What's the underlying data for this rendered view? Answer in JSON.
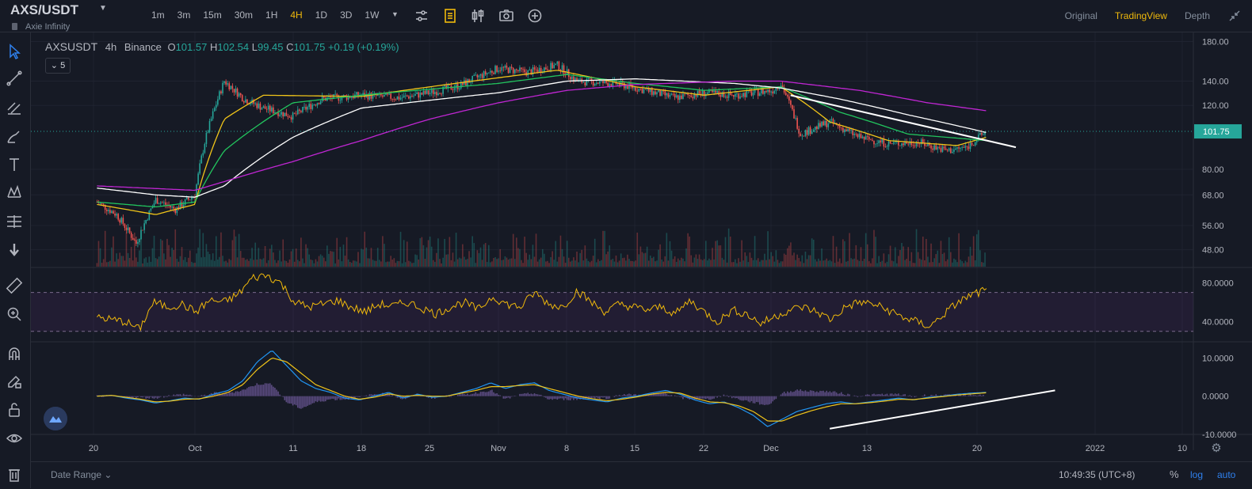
{
  "header": {
    "symbol": "AXS/USDT",
    "name": "Axie Infinity",
    "intervals": [
      "1m",
      "3m",
      "15m",
      "30m",
      "1H",
      "4H",
      "1D",
      "3D",
      "1W"
    ],
    "active_interval": "4H",
    "views": [
      "Original",
      "TradingView",
      "Depth"
    ],
    "active_view": "TradingView"
  },
  "legend": {
    "symbol": "AXSUSDT",
    "interval": "4h",
    "exchange": "Binance",
    "o_label": "O",
    "open": "101.57",
    "h_label": "H",
    "high": "102.54",
    "l_label": "L",
    "low": "99.45",
    "c_label": "C",
    "close": "101.75",
    "change": "+0.19 (+0.19%)",
    "indicator_count": "5"
  },
  "bottom": {
    "date_range": "Date Range",
    "clock": "10:49:35 (UTC+8)",
    "pct": "%",
    "log": "log",
    "auto": "auto"
  },
  "colors": {
    "up": "#26a69a",
    "down": "#ef5350",
    "ma_yellow": "#f0c419",
    "ma_green": "#22c55e",
    "ma_white": "#ffffff",
    "ma_purple": "#c026d3",
    "rsi": "#f0b90b",
    "macd": "#2196f3",
    "signal": "#f0c419",
    "accent": "#f0b90b"
  },
  "chart_data": [
    {
      "type": "candlestick",
      "scale": "log",
      "ylim": [
        44,
        185
      ],
      "y_ticks": [
        "180.00",
        "140.00",
        "120.00",
        "80.00",
        "68.00",
        "56.00",
        "48.00"
      ],
      "last_price": "101.75",
      "x_ticks": [
        "20",
        "Oct",
        "11",
        "18",
        "25",
        "Nov",
        "8",
        "15",
        "22",
        "Dec",
        "13",
        "20",
        "2022",
        "10"
      ],
      "price_path": [
        [
          "20",
          65
        ],
        [
          "22",
          60
        ],
        [
          "24",
          50
        ],
        [
          "26",
          66
        ],
        [
          "28",
          62
        ],
        [
          "Sep 30",
          68
        ],
        [
          "Oct 2",
          95
        ],
        [
          "Oct 4",
          140
        ],
        [
          "Oct 6",
          125
        ],
        [
          "Oct 8",
          118
        ],
        [
          "Oct 11",
          112
        ],
        [
          "Oct 14",
          125
        ],
        [
          "Oct 18",
          128
        ],
        [
          "Oct 22",
          126
        ],
        [
          "Oct 25",
          130
        ],
        [
          "Oct 28",
          136
        ],
        [
          "Nov 1",
          152
        ],
        [
          "Nov 4",
          148
        ],
        [
          "Nov 7",
          155
        ],
        [
          "Nov 9",
          140
        ],
        [
          "Nov 13",
          138
        ],
        [
          "Nov 16",
          132
        ],
        [
          "Nov 19",
          126
        ],
        [
          "Nov 22",
          130
        ],
        [
          "Nov 25",
          128
        ],
        [
          "Nov 29",
          132
        ],
        [
          "Dec 2",
          138
        ],
        [
          "Dec 4",
          100
        ],
        [
          "Dec 7",
          108
        ],
        [
          "Dec 10",
          98
        ],
        [
          "Dec 13",
          94
        ],
        [
          "Dec 16",
          95
        ],
        [
          "Dec 19",
          90
        ],
        [
          "Dec 21",
          92
        ],
        [
          "Dec 23",
          101.75
        ]
      ],
      "moving_averages": [
        {
          "color": "#f0c419",
          "path": [
            [
              "20",
              64
            ],
            [
              "26",
              60
            ],
            [
              "Sep 30",
              64
            ],
            [
              "Oct 4",
              110
            ],
            [
              "Oct 8",
              128
            ],
            [
              "Oct 18",
              127
            ],
            [
              "Nov 1",
              143
            ],
            [
              "Nov 7",
              150
            ],
            [
              "Nov 15",
              135
            ],
            [
              "Nov 22",
              128
            ],
            [
              "Dec 2",
              135
            ],
            [
              "Dec 7",
              108
            ],
            [
              "Dec 13",
              96
            ],
            [
              "Dec 20",
              93
            ],
            [
              "Dec 23",
              98
            ]
          ]
        },
        {
          "color": "#22c55e",
          "path": [
            [
              "20",
              65
            ],
            [
              "26",
              63
            ],
            [
              "Sep 30",
              65
            ],
            [
              "Oct 4",
              90
            ],
            [
              "Oct 11",
              122
            ],
            [
              "Oct 18",
              128
            ],
            [
              "Nov 1",
              138
            ],
            [
              "Nov 8",
              146
            ],
            [
              "Nov 15",
              138
            ],
            [
              "Nov 22",
              132
            ],
            [
              "Dec 2",
              135
            ],
            [
              "Dec 8",
              115
            ],
            [
              "Dec 15",
              100
            ],
            [
              "Dec 23",
              96
            ]
          ]
        },
        {
          "color": "#ffffff",
          "path": [
            [
              "20",
              71
            ],
            [
              "26",
              68
            ],
            [
              "Sep 30",
              67
            ],
            [
              "Oct 4",
              72
            ],
            [
              "Oct 11",
              98
            ],
            [
              "Oct 18",
              118
            ],
            [
              "Nov 1",
              130
            ],
            [
              "Nov 8",
              140
            ],
            [
              "Nov 15",
              142
            ],
            [
              "Nov 25",
              138
            ],
            [
              "Dec 2",
              134
            ],
            [
              "Dec 8",
              125
            ],
            [
              "Dec 15",
              113
            ],
            [
              "Dec 23",
              101
            ]
          ]
        },
        {
          "color": "#c026d3",
          "path": [
            [
              "20",
              72
            ],
            [
              "Sep 30",
              70
            ],
            [
              "Oct 4",
              74
            ],
            [
              "Oct 11",
              84
            ],
            [
              "Oct 18",
              96
            ],
            [
              "Oct 25",
              110
            ],
            [
              "Nov 1",
              122
            ],
            [
              "Nov 8",
              132
            ],
            [
              "Nov 15",
              137
            ],
            [
              "Nov 25",
              140
            ],
            [
              "Dec 2",
              140
            ],
            [
              "Dec 10",
              132
            ],
            [
              "Dec 17",
              122
            ],
            [
              "Dec 23",
              116
            ]
          ]
        }
      ],
      "trendlines": [
        {
          "points": [
            [
              "Dec 3",
              128
            ],
            [
              "Dec 26",
              92
            ]
          ]
        }
      ]
    },
    {
      "type": "line",
      "indicator": "RSI",
      "ylim": [
        20,
        95
      ],
      "y_ticks": [
        "80.0000",
        "40.0000"
      ],
      "bands": [
        70,
        30
      ],
      "series": [
        {
          "values": [
            45,
            42,
            40,
            32,
            60,
            55,
            58,
            50,
            62,
            60,
            68,
            85,
            88,
            80,
            60,
            55,
            58,
            62,
            55,
            50,
            58,
            56,
            60,
            54,
            48,
            55,
            60,
            52,
            66,
            58,
            55,
            70,
            58,
            55,
            72,
            60,
            50,
            58,
            55,
            52,
            55,
            48,
            62,
            50,
            40,
            52,
            48,
            38,
            45,
            52,
            55,
            50,
            42,
            55,
            60,
            58,
            52,
            45,
            40,
            35,
            48,
            60,
            68,
            72
          ]
        }
      ]
    },
    {
      "type": "line",
      "indicator": "MACD",
      "ylim": [
        -10,
        14
      ],
      "y_ticks": [
        "10.0000",
        "0.0000",
        "-10.0000"
      ],
      "series": [
        {
          "name": "MACD",
          "values": [
            0,
            0.2,
            -0.5,
            -1,
            -1.8,
            -1.2,
            -0.5,
            -0.8,
            0.5,
            1.5,
            4,
            9,
            12,
            8,
            4,
            2,
            1,
            -0.5,
            -1,
            0,
            1,
            -0.5,
            0.5,
            -0.3,
            0,
            1,
            2,
            3.5,
            2,
            3,
            3.5,
            1.5,
            0.5,
            -0.5,
            -1,
            -1.5,
            -0.5,
            0,
            0.8,
            1.5,
            0.5,
            -1,
            -2,
            -1.5,
            -3,
            -5,
            -8,
            -6,
            -4,
            -3,
            -2,
            -1.5,
            -2,
            -1.5,
            -1,
            -0.5,
            -1,
            -0.3,
            0,
            0.5,
            0.8,
            1
          ]
        },
        {
          "name": "Signal",
          "values": [
            0,
            0.2,
            -0.3,
            -0.8,
            -1.5,
            -1.3,
            -0.8,
            -0.7,
            0,
            1,
            3,
            7,
            10,
            9,
            6,
            3,
            1.5,
            0,
            -0.8,
            -0.3,
            0.6,
            0,
            0.2,
            0,
            0,
            0.8,
            1.5,
            2.5,
            2.5,
            2.8,
            3,
            2,
            1,
            0,
            -0.7,
            -1.2,
            -0.8,
            -0.2,
            0.5,
            1,
            0.8,
            -0.5,
            -1.5,
            -1.7,
            -2.5,
            -4,
            -6.5,
            -6.5,
            -5,
            -3.8,
            -2.8,
            -2,
            -2,
            -1.7,
            -1.3,
            -0.8,
            -0.9,
            -0.5,
            -0.1,
            0.3,
            0.6,
            0.9
          ]
        }
      ],
      "trendlines": [
        {
          "points": [
            [
              "Dec 7",
              -8.5
            ],
            [
              "Dec 30",
              1.5
            ]
          ]
        }
      ]
    }
  ]
}
